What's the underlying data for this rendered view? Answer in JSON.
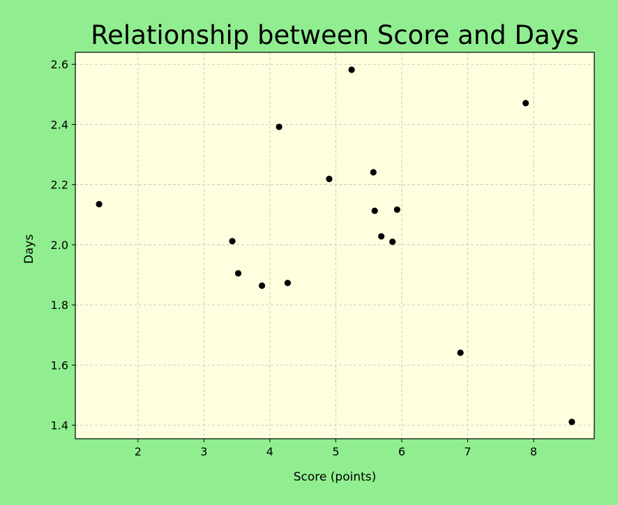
{
  "chart_data": {
    "type": "scatter",
    "title": "Relationship between Score and Days",
    "xlabel": "Score (points)",
    "ylabel": "Days",
    "xlim": [
      1.05,
      8.92
    ],
    "ylim": [
      1.355,
      2.64
    ],
    "xticks": [
      2,
      3,
      4,
      5,
      6,
      7,
      8
    ],
    "yticks": [
      1.4,
      1.6,
      1.8,
      2.0,
      2.2,
      2.4,
      2.6
    ],
    "ytick_labels": [
      "1.4",
      "1.6",
      "1.8",
      "2.0",
      "2.2",
      "2.4",
      "2.6"
    ],
    "grid": true,
    "colors": {
      "figure_background": "#90ee90",
      "plot_background": "#ffffe0",
      "marker": "#000000",
      "grid": "#bdbdbd"
    },
    "points": [
      {
        "x": 1.41,
        "y": 2.135
      },
      {
        "x": 3.43,
        "y": 2.012
      },
      {
        "x": 3.52,
        "y": 1.905
      },
      {
        "x": 3.88,
        "y": 1.864
      },
      {
        "x": 4.14,
        "y": 2.392
      },
      {
        "x": 4.27,
        "y": 1.873
      },
      {
        "x": 4.9,
        "y": 2.219
      },
      {
        "x": 5.24,
        "y": 2.582
      },
      {
        "x": 5.57,
        "y": 2.241
      },
      {
        "x": 5.59,
        "y": 2.113
      },
      {
        "x": 5.69,
        "y": 2.028
      },
      {
        "x": 5.86,
        "y": 2.01
      },
      {
        "x": 5.93,
        "y": 2.117
      },
      {
        "x": 6.89,
        "y": 1.641
      },
      {
        "x": 7.88,
        "y": 2.471
      },
      {
        "x": 8.58,
        "y": 1.411
      }
    ]
  }
}
